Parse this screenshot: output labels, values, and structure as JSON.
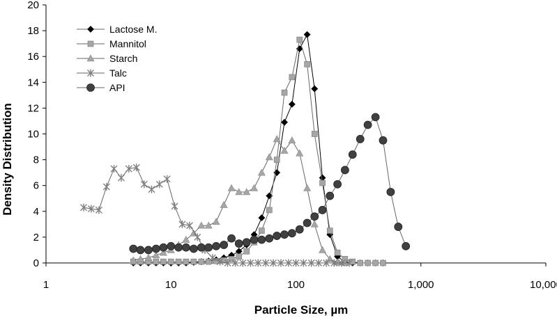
{
  "chart_data": {
    "type": "line",
    "title": "",
    "xlabel": "Particle Size, µm",
    "ylabel": "Density Distribution",
    "xscale": "log",
    "xlim": [
      1,
      10000
    ],
    "ylim": [
      0,
      20
    ],
    "x_ticks": [
      1,
      10,
      100,
      1000,
      10000
    ],
    "x_tick_labels": [
      "1",
      "10",
      "100",
      "1,000",
      "10,000"
    ],
    "y_ticks": [
      0,
      2,
      4,
      6,
      8,
      10,
      12,
      14,
      16,
      18,
      20
    ],
    "grid": false,
    "legend_position": "top-left",
    "series": [
      {
        "name": "Lactose M.",
        "marker": "diamond",
        "color": "#000000",
        "x": [
          5,
          5.7,
          6.6,
          7.6,
          8.7,
          10,
          11.5,
          13.2,
          15.2,
          17.5,
          20,
          23,
          26.5,
          30.5,
          35,
          40.3,
          46.3,
          53.2,
          61.2,
          70.4,
          80.9,
          93,
          107,
          123,
          141,
          163,
          187,
          215,
          247,
          284,
          327,
          376,
          433,
          498
        ],
        "y": [
          0,
          0,
          0,
          0,
          0,
          0,
          0,
          0,
          0.05,
          0.1,
          0.15,
          0.25,
          0.4,
          0.6,
          0.9,
          1.4,
          2.2,
          3.5,
          5.2,
          7.0,
          10.9,
          12.3,
          16.6,
          17.7,
          13.5,
          6.6,
          2.2,
          0.5,
          0.05,
          0,
          0,
          0,
          0,
          0
        ]
      },
      {
        "name": "Mannitol",
        "marker": "square",
        "color": "#a6a6a6",
        "x": [
          5,
          5.7,
          6.6,
          7.6,
          8.7,
          10,
          11.5,
          13.2,
          15.2,
          17.5,
          20,
          23,
          26.5,
          30.5,
          35,
          40.3,
          46.3,
          53.2,
          61.2,
          70.4,
          80.9,
          93,
          107,
          123,
          141,
          163,
          187,
          215,
          247,
          284,
          327,
          376,
          433,
          498
        ],
        "y": [
          0.1,
          0.1,
          0.1,
          0.1,
          0.1,
          0.1,
          0.1,
          0.1,
          0.1,
          0.1,
          0.1,
          0.15,
          0.2,
          0.3,
          0.5,
          0.9,
          1.6,
          2.5,
          4.1,
          8.0,
          13.2,
          14.4,
          17.3,
          15.4,
          10.0,
          6.2,
          2.5,
          0.8,
          0.3,
          0.1,
          0,
          0,
          0,
          0
        ]
      },
      {
        "name": "Starch",
        "marker": "triangle",
        "color": "#a6a6a6",
        "x": [
          5,
          5.7,
          6.6,
          7.6,
          8.7,
          10,
          11.5,
          13.2,
          15.2,
          17.5,
          20,
          23,
          26.5,
          30.5,
          35,
          40.3,
          46.3,
          53.2,
          61.2,
          70.4,
          80.9,
          93,
          107,
          123,
          141,
          163,
          187,
          215,
          247
        ],
        "y": [
          0.2,
          0.3,
          0.4,
          0.6,
          0.8,
          1.0,
          1.4,
          1.8,
          2.3,
          2.9,
          2.9,
          3.2,
          4.5,
          5.8,
          5.5,
          5.5,
          5.8,
          7.0,
          8.2,
          9.6,
          8.7,
          9.5,
          8.5,
          5.8,
          3.0,
          1.0,
          0.3,
          0.05,
          0
        ],
        "x_fix": null
      },
      {
        "name": "Talc",
        "marker": "star",
        "color": "#808080",
        "x": [
          2,
          2.3,
          2.65,
          3.05,
          3.5,
          4.0,
          4.6,
          5.3,
          6.1,
          7.0,
          8.1,
          9.3,
          10.7,
          12.3,
          14.1,
          16.3,
          18.7,
          21.5,
          24.7,
          28.4,
          32.7,
          37.6,
          43.3,
          49.8,
          57.3,
          65.9,
          75.8,
          87.2,
          100,
          115,
          133,
          152,
          175,
          202,
          232,
          267
        ],
        "y": [
          4.3,
          4.2,
          4.1,
          5.9,
          7.3,
          6.6,
          7.3,
          7.4,
          6.1,
          5.7,
          6.1,
          6.5,
          4.4,
          3.0,
          2.9,
          2.0,
          1.0,
          0.4,
          0.1,
          0,
          0,
          0,
          0,
          0,
          0,
          0,
          0,
          0,
          0,
          0,
          0,
          0,
          0,
          0,
          0,
          0
        ]
      },
      {
        "name": "API",
        "marker": "circle",
        "color": "#404040",
        "x": [
          5,
          5.7,
          6.6,
          7.6,
          8.7,
          10,
          11.5,
          13.2,
          15.2,
          17.5,
          20,
          23,
          26.5,
          30.5,
          35,
          40.3,
          46.3,
          53.2,
          61.2,
          70.4,
          80.9,
          93,
          107,
          123,
          141,
          163,
          187,
          215,
          247,
          284,
          327,
          376,
          433,
          498,
          573,
          659,
          758
        ],
        "y": [
          1.1,
          1.0,
          1.0,
          1.1,
          1.2,
          1.3,
          1.2,
          1.2,
          1.1,
          1.2,
          1.2,
          1.3,
          1.4,
          1.9,
          1.5,
          1.6,
          1.8,
          1.8,
          1.9,
          2.1,
          2.2,
          2.3,
          2.6,
          3.1,
          3.6,
          4.1,
          5.2,
          6.1,
          7.2,
          8.4,
          9.6,
          10.7,
          11.3,
          9.5,
          5.5,
          2.8,
          1.3
        ]
      }
    ]
  }
}
